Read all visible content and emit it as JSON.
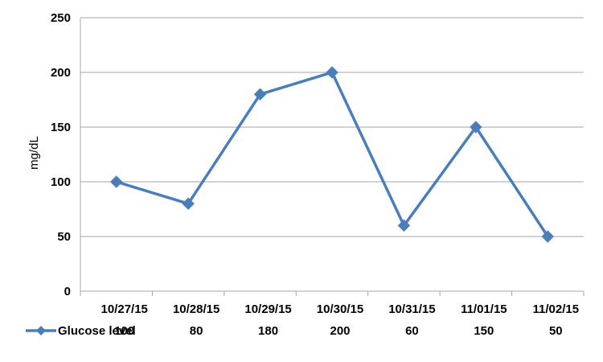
{
  "chart_data": {
    "type": "line",
    "title": "",
    "xlabel": "",
    "ylabel": "mg/dL",
    "ylim": [
      0,
      250
    ],
    "yticks": [
      "0",
      "50",
      "100",
      "150",
      "200",
      "250"
    ],
    "categories": [
      "10/27/15",
      "10/28/15",
      "10/29/15",
      "10/30/15",
      "10/31/15",
      "11/01/15",
      "11/02/15"
    ],
    "grid": true,
    "legend": "bottom-left, in data table",
    "data_table": true,
    "series": [
      {
        "name": "Glucose level",
        "color": "#4a7ebb",
        "marker": "diamond",
        "x": [
          0.5,
          1.5,
          2.5,
          3.5,
          4.5,
          5.5,
          6.5
        ],
        "values": [
          100,
          80,
          180,
          200,
          60,
          150,
          50
        ],
        "table_values": [
          "100",
          "80",
          "180",
          "200",
          "60",
          "150",
          "50"
        ]
      }
    ]
  }
}
